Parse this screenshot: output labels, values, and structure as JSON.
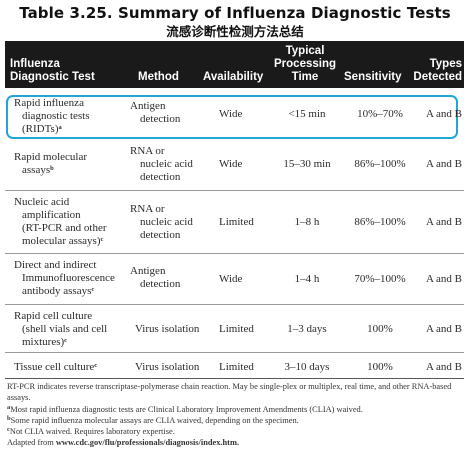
{
  "title": "Table 3.25. Summary of Influenza Diagnostic Tests",
  "title_zh": "流感诊断性检测方法总结",
  "headers": {
    "test": [
      "Influenza",
      "Diagnostic Test"
    ],
    "method": "Method",
    "availability": "Availability",
    "time": [
      "Typical",
      "Processing",
      "Time"
    ],
    "sensitivity": "Sensitivity",
    "types": [
      "Types",
      "Detected"
    ]
  },
  "rows": [
    {
      "test": [
        "Rapid influenza",
        "diagnostic tests",
        "(RIDTs)"
      ],
      "sup": "a",
      "method": [
        "Antigen",
        "detection"
      ],
      "availability": "Wide",
      "time": "<15 min",
      "sensitivity": "10%–70%",
      "types": "A and B"
    },
    {
      "test": [
        "Rapid molecular",
        "assays"
      ],
      "sup": "b",
      "method": [
        "RNA or",
        "nucleic acid",
        "detection"
      ],
      "availability": "Wide",
      "time": "15–30 min",
      "sensitivity": "86%–100%",
      "types": "A and B"
    },
    {
      "test": [
        "Nucleic acid",
        "amplification",
        "(RT-PCR and other",
        "molecular assays)"
      ],
      "sup": "c",
      "method": [
        "RNA or",
        "nucleic acid",
        "detection"
      ],
      "availability": "Limited",
      "time": "1–8 h",
      "sensitivity": "86%–100%",
      "types": "A and B"
    },
    {
      "test": [
        "Direct and indirect",
        "Immunofluorescence",
        "antibody assays"
      ],
      "sup": "c",
      "method": [
        "Antigen",
        "detection"
      ],
      "availability": "Wide",
      "time": "1–4 h",
      "sensitivity": "70%–100%",
      "types": "A and B"
    },
    {
      "test": [
        "Rapid cell culture",
        "(shell vials and cell",
        "mixtures)"
      ],
      "sup": "c",
      "method": [
        "Virus isolation"
      ],
      "availability": "Limited",
      "time": "1–3 days",
      "sensitivity": "100%",
      "types": "A and B"
    },
    {
      "test": [
        "Tissue cell culture"
      ],
      "sup": "c",
      "method": [
        "Virus isolation"
      ],
      "availability": "Limited",
      "time": "3–10 days",
      "sensitivity": "100%",
      "types": "A and B"
    }
  ],
  "footnotes": {
    "abbrev": "RT-PCR indicates reverse transcriptase-polymerase chain reaction. May be single-plex or multiplex, real time, and other RNA-based assays.",
    "a": "Most rapid influenza diagnostic tests are Clinical Laboratory Improvement Amendments (CLIA) waived.",
    "b": "Some rapid influenza molecular assays are CLIA waived, depending on the specimen.",
    "c": "Not CLIA waived. Requires laboratory expertise.",
    "source_prefix": "Adapted from ",
    "source_url": "www.cdc.gov/flu/professionals/diagnosis/index.htm."
  }
}
